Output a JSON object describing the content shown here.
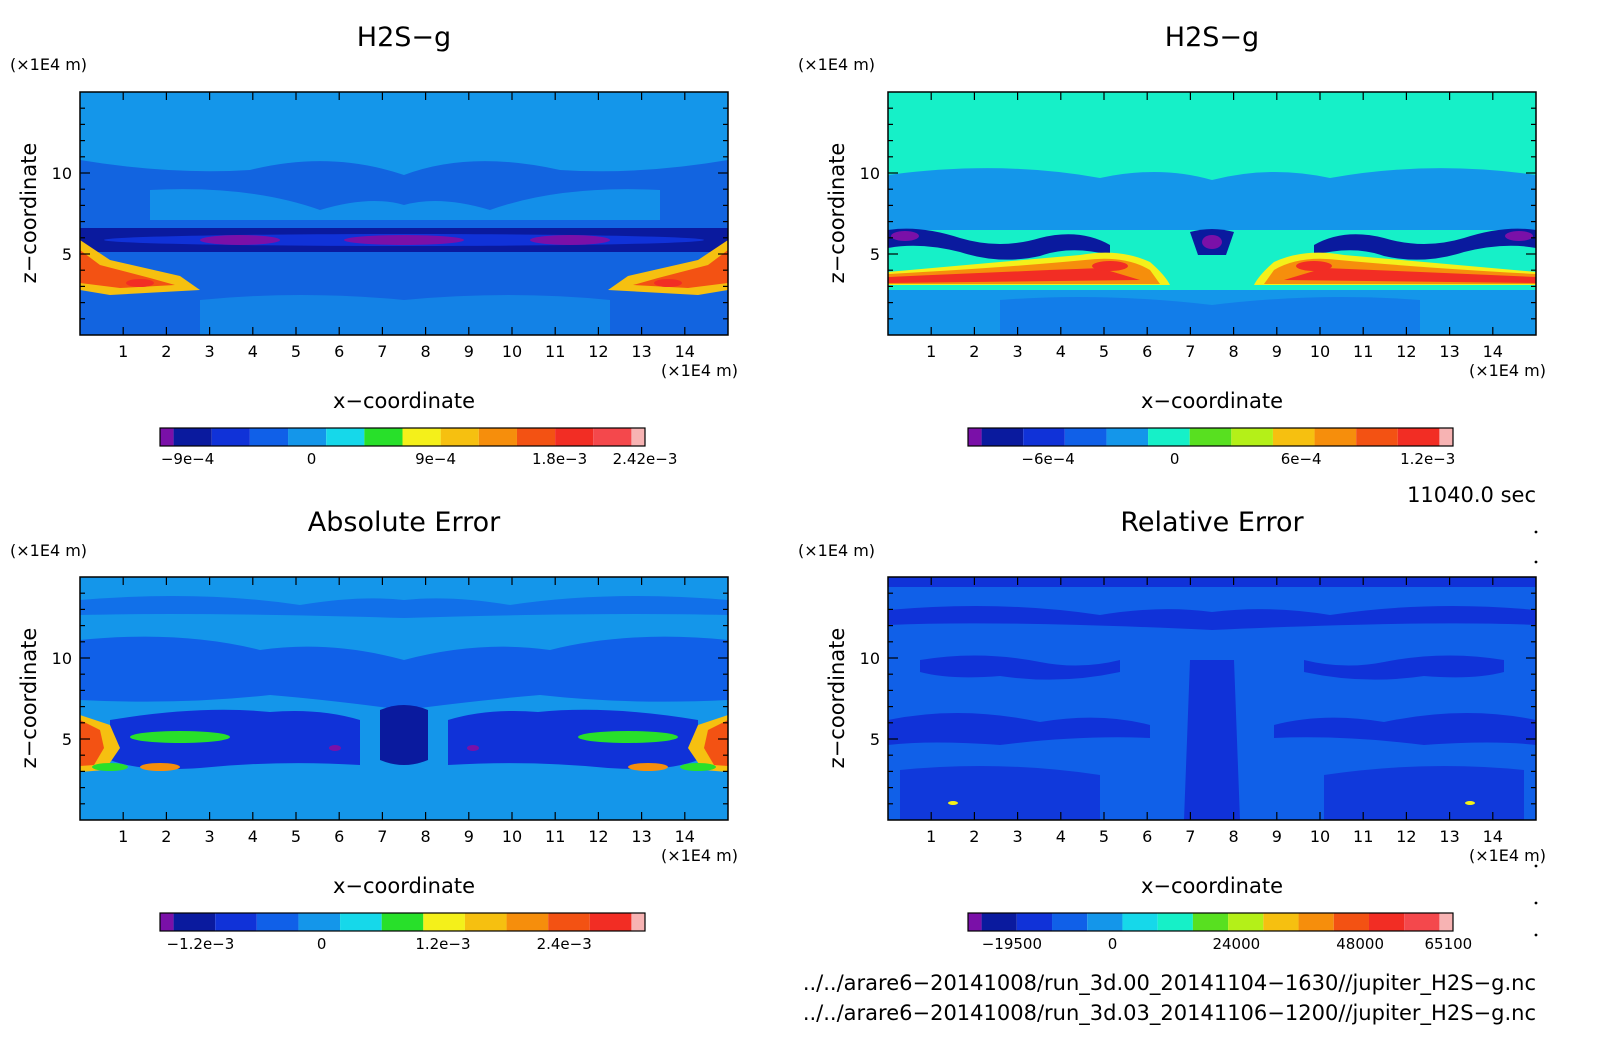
{
  "chart_data": [
    {
      "type": "heatmap",
      "title": "H2S−g",
      "xlabel": "x−coordinate",
      "ylabel": "z−coordinate",
      "x_unit": "(×1E4 m)",
      "y_unit": "(×1E4 m)",
      "xlim": [
        0,
        15
      ],
      "ylim": [
        0,
        15
      ],
      "xticks": [
        "1",
        "2",
        "3",
        "4",
        "5",
        "6",
        "7",
        "8",
        "9",
        "10",
        "11",
        "12",
        "13",
        "14"
      ],
      "yticks": [
        "5",
        "10"
      ],
      "colormap": [
        "#7a10a8",
        "#0a1a9e",
        "#1032d8",
        "#1060e8",
        "#1496ea",
        "#16d8ea",
        "#28e02a",
        "#f4f01a",
        "#f6c010",
        "#f68e0c",
        "#f35213",
        "#f22d24",
        "#f4484c",
        "#f7b3b3"
      ],
      "colorbar": {
        "labels": [
          "−9e−4",
          "0",
          "9e−4",
          "1.8e−3",
          "2.42e−3"
        ],
        "range": [
          -0.0011,
          0.00242
        ]
      },
      "field_summary": {
        "background": "#1264e0",
        "upper_band": "#1496ea",
        "dark_band_z": [
          5.5,
          6.5
        ],
        "dark_band_color": "#0a1a9e",
        "peak_color": "#f22d24"
      }
    },
    {
      "type": "heatmap",
      "title": "H2S−g",
      "xlabel": "x−coordinate",
      "ylabel": "z−coordinate",
      "x_unit": "(×1E4 m)",
      "y_unit": "(×1E4 m)",
      "xlim": [
        0,
        15
      ],
      "ylim": [
        0,
        15
      ],
      "xticks": [
        "1",
        "2",
        "3",
        "4",
        "5",
        "6",
        "7",
        "8",
        "9",
        "10",
        "11",
        "12",
        "13",
        "14"
      ],
      "yticks": [
        "5",
        "10"
      ],
      "colormap": [
        "#7a10a8",
        "#0a1a9e",
        "#1032d8",
        "#1060e8",
        "#1496ea",
        "#16f0c8",
        "#58e020",
        "#b4f018",
        "#f6c010",
        "#f68e0c",
        "#f35213",
        "#f22d24",
        "#f7b3b3"
      ],
      "colorbar": {
        "labels": [
          "−6e−4",
          "0",
          "6e−4",
          "1.2e−3"
        ],
        "range": [
          -0.00098,
          0.00132
        ]
      },
      "field_summary": {
        "background": "#16f0c8",
        "lower_band": "#1496ea",
        "peak_color": "#f35213"
      }
    },
    {
      "type": "heatmap",
      "title": "Absolute Error",
      "xlabel": "x−coordinate",
      "ylabel": "z−coordinate",
      "x_unit": "(×1E4 m)",
      "y_unit": "(×1E4 m)",
      "xlim": [
        0,
        15
      ],
      "ylim": [
        0,
        15
      ],
      "xticks": [
        "1",
        "2",
        "3",
        "4",
        "5",
        "6",
        "7",
        "8",
        "9",
        "10",
        "11",
        "12",
        "13",
        "14"
      ],
      "yticks": [
        "5",
        "10"
      ],
      "colormap": [
        "#7a10a8",
        "#0a1a9e",
        "#1032d8",
        "#1060e8",
        "#1496ea",
        "#16d8ea",
        "#28e02a",
        "#f4f01a",
        "#f6c010",
        "#f68e0c",
        "#f35213",
        "#f22d24",
        "#f7b3b3"
      ],
      "colorbar": {
        "labels": [
          "−1.2e−3",
          "0",
          "1.2e−3",
          "2.4e−3"
        ],
        "range": [
          -0.0016,
          0.0032
        ]
      },
      "field_summary": {
        "background": "#1496ea",
        "mid_band": "#1060e8",
        "peak_color": "#f68e0c"
      }
    },
    {
      "type": "heatmap",
      "title": "Relative Error",
      "xlabel": "x−coordinate",
      "ylabel": "z−coordinate",
      "x_unit": "(×1E4 m)",
      "y_unit": "(×1E4 m)",
      "xlim": [
        0,
        15
      ],
      "ylim": [
        0,
        15
      ],
      "xticks": [
        "1",
        "2",
        "3",
        "4",
        "5",
        "6",
        "7",
        "8",
        "9",
        "10",
        "11",
        "12",
        "13",
        "14"
      ],
      "yticks": [
        "5",
        "10"
      ],
      "colormap": [
        "#7a10a8",
        "#0a1a9e",
        "#1032d8",
        "#1060e8",
        "#1496ea",
        "#16d8ea",
        "#16f0c8",
        "#58e020",
        "#b4f018",
        "#f6c010",
        "#f68e0c",
        "#f35213",
        "#f22d24",
        "#f4484c",
        "#f7b3b3"
      ],
      "colorbar": {
        "labels": [
          "−19500",
          "0",
          "24000",
          "48000",
          "65100"
        ],
        "range": [
          -28000,
          66000
        ]
      },
      "field_summary": {
        "background": "#1060e8",
        "patch_color": "#1032d8"
      }
    }
  ],
  "time_label": "11040.0 sec",
  "footer": [
    "../../arare6−20141008/run_3d.00_20141104−1630//jupiter_H2S−g.nc",
    "../../arare6−20141008/run_3d.03_20141106−1200//jupiter_H2S−g.nc"
  ]
}
